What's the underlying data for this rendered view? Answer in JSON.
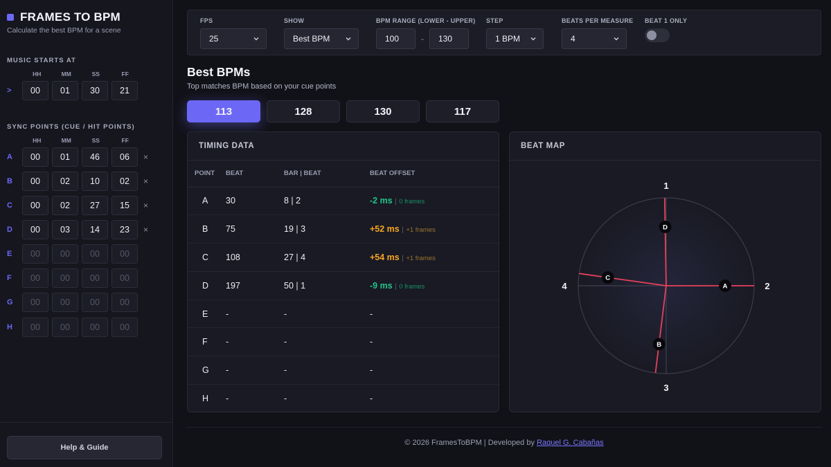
{
  "app": {
    "title": "FRAMES TO BPM",
    "subtitle": "Calculate the best BPM for a scene"
  },
  "sidebar": {
    "music_label": "MUSIC STARTS AT",
    "col_heads": [
      "HH",
      "MM",
      "SS",
      "FF"
    ],
    "music_prefix": ">",
    "music_start": [
      "00",
      "01",
      "30",
      "21"
    ],
    "sync_label": "SYNC POINTS (CUE / HIT POINTS)",
    "remove_glyph": "×",
    "sync_points": [
      {
        "letter": "A",
        "values": [
          "00",
          "01",
          "46",
          "06"
        ],
        "set": true
      },
      {
        "letter": "B",
        "values": [
          "00",
          "02",
          "10",
          "02"
        ],
        "set": true
      },
      {
        "letter": "C",
        "values": [
          "00",
          "02",
          "27",
          "15"
        ],
        "set": true
      },
      {
        "letter": "D",
        "values": [
          "00",
          "03",
          "14",
          "23"
        ],
        "set": true
      },
      {
        "letter": "E",
        "values": [
          "00",
          "00",
          "00",
          "00"
        ],
        "set": false
      },
      {
        "letter": "F",
        "values": [
          "00",
          "00",
          "00",
          "00"
        ],
        "set": false
      },
      {
        "letter": "G",
        "values": [
          "00",
          "00",
          "00",
          "00"
        ],
        "set": false
      },
      {
        "letter": "H",
        "values": [
          "00",
          "00",
          "00",
          "00"
        ],
        "set": false
      }
    ],
    "help_label": "Help & Guide"
  },
  "controls": {
    "fps": {
      "label": "FPS",
      "value": "25"
    },
    "show": {
      "label": "SHOW",
      "value": "Best BPM"
    },
    "range": {
      "label": "BPM RANGE (LOWER - UPPER)",
      "lower": "100",
      "dash": "-",
      "upper": "130"
    },
    "step": {
      "label": "STEP",
      "value": "1 BPM"
    },
    "beats": {
      "label": "BEATS PER MEASURE",
      "value": "4"
    },
    "beat1": {
      "label": "BEAT 1 ONLY",
      "on": false
    }
  },
  "best": {
    "title": "Best BPMs",
    "subtitle": "Top matches BPM based on your cue points",
    "bpms": [
      "113",
      "128",
      "130",
      "117"
    ],
    "active_index": 0
  },
  "timing": {
    "title": "TIMING DATA",
    "headers": [
      "POINT",
      "BEAT",
      "BAR | BEAT",
      "BEAT OFFSET"
    ],
    "rows": [
      {
        "point": "A",
        "beat": "30",
        "barbeat": "8 | 2",
        "offset": "-2 ms",
        "sep": "|",
        "frames": "0 frames",
        "status": "good"
      },
      {
        "point": "B",
        "beat": "75",
        "barbeat": "19 | 3",
        "offset": "+52 ms",
        "sep": "|",
        "frames": "+1 frames",
        "status": "warn"
      },
      {
        "point": "C",
        "beat": "108",
        "barbeat": "27 | 4",
        "offset": "+54 ms",
        "sep": "|",
        "frames": "+1 frames",
        "status": "warn"
      },
      {
        "point": "D",
        "beat": "197",
        "barbeat": "50 | 1",
        "offset": "-9 ms",
        "sep": "|",
        "frames": "0 frames",
        "status": "good"
      },
      {
        "point": "E",
        "beat": "-",
        "barbeat": "-",
        "offset": "-",
        "status": "none"
      },
      {
        "point": "F",
        "beat": "-",
        "barbeat": "-",
        "offset": "-",
        "status": "none"
      },
      {
        "point": "G",
        "beat": "-",
        "barbeat": "-",
        "offset": "-",
        "status": "none"
      },
      {
        "point": "H",
        "beat": "-",
        "barbeat": "-",
        "offset": "-",
        "status": "none"
      }
    ]
  },
  "beatmap": {
    "title": "BEAT MAP",
    "beat_labels": [
      "1",
      "2",
      "3",
      "4"
    ],
    "points": [
      {
        "label": "D",
        "beat": 1,
        "offset_deg": -1
      },
      {
        "label": "A",
        "beat": 2,
        "offset_deg": 0
      },
      {
        "label": "B",
        "beat": 3,
        "offset_deg": 7
      },
      {
        "label": "C",
        "beat": 4,
        "offset_deg": 8
      }
    ],
    "colors": {
      "line": "#e8405a",
      "ring": "#3a3c4a",
      "axis": "#3f414f"
    }
  },
  "footer": {
    "text": "© 2026 FramesToBPM | Developed by",
    "author": "Raquel G. Cabañas"
  }
}
